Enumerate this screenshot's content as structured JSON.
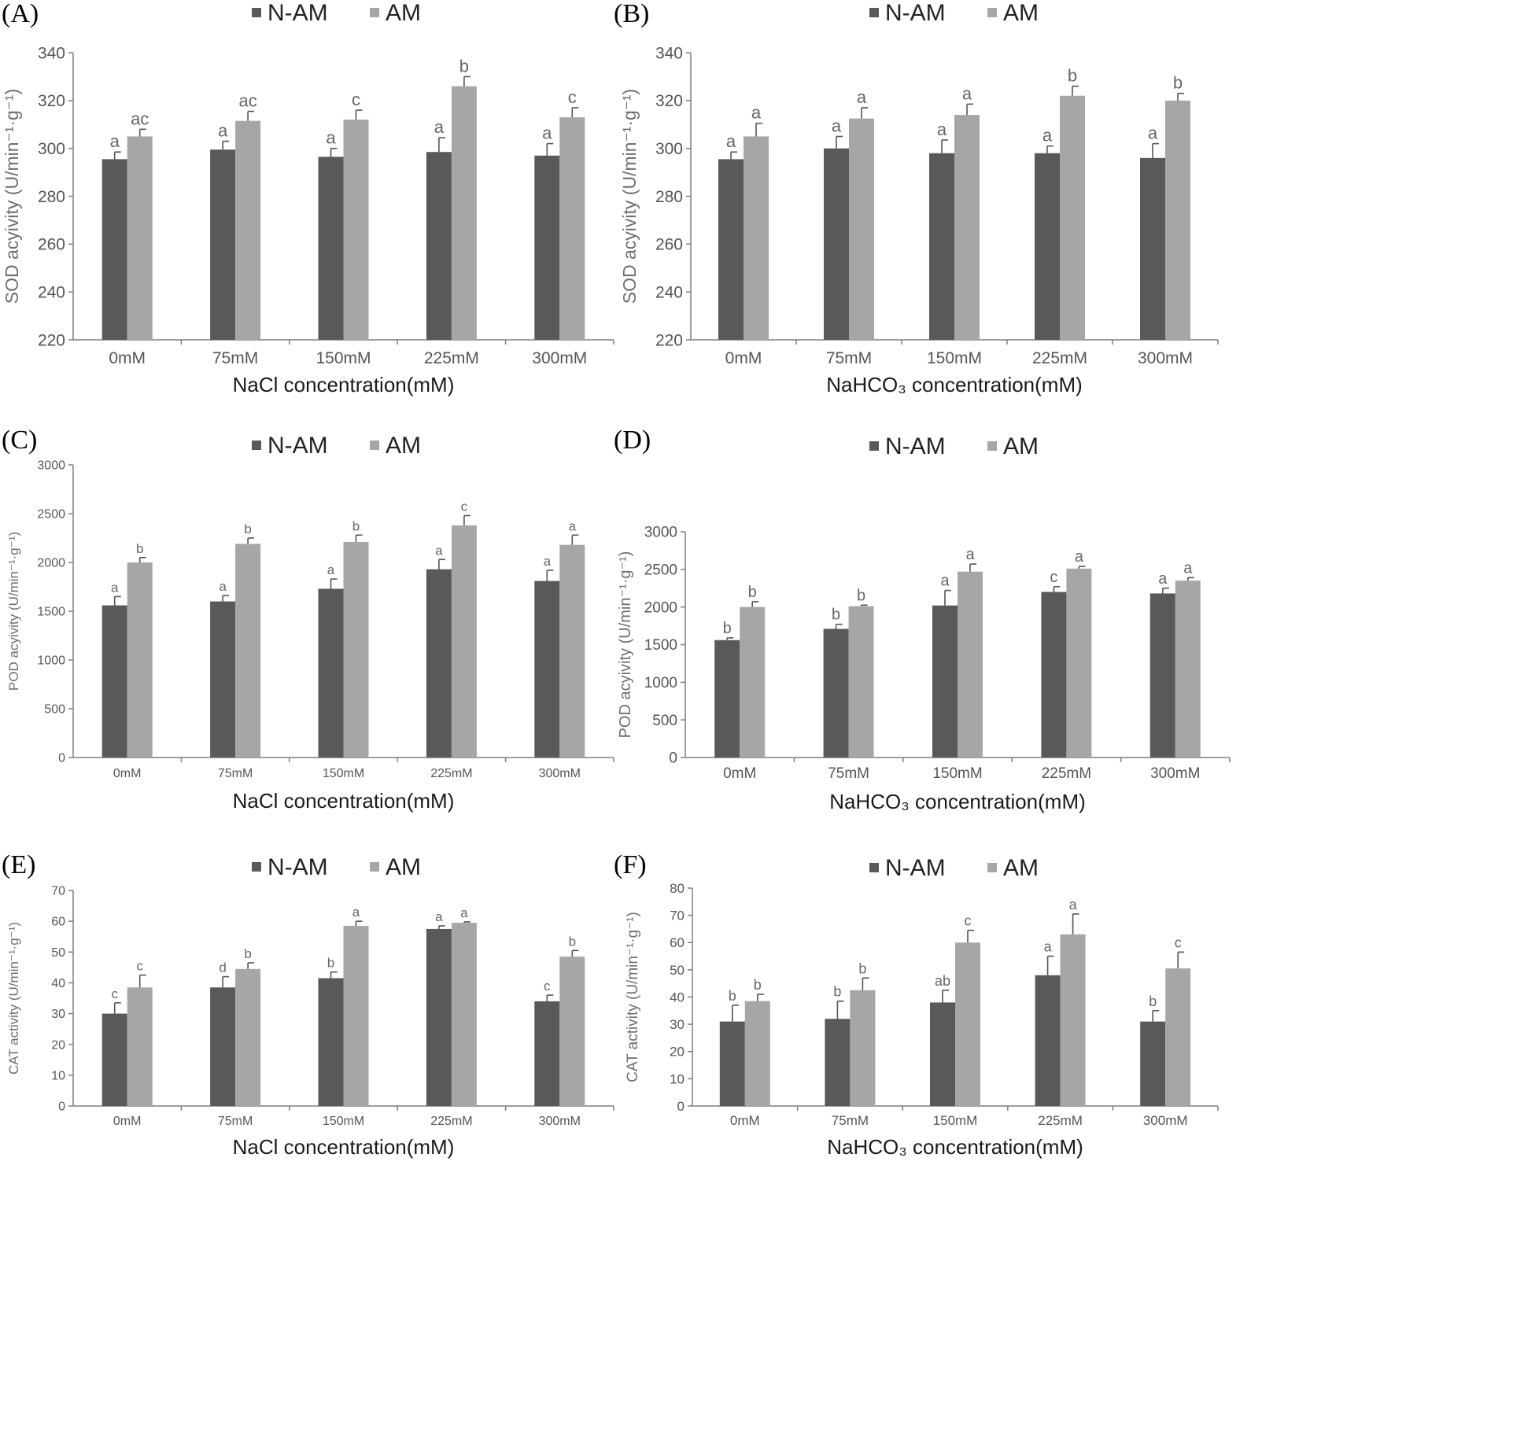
{
  "figure": {
    "colors": {
      "N-AM": "#595959",
      "AM": "#a6a6a6",
      "axis": "#7f7f7f",
      "error_bar": "#555555"
    },
    "legend_placement": "top-center",
    "grid": false
  },
  "chart_data": [
    {
      "panel_label": "(A)",
      "type": "bar",
      "categories": [
        "0mM",
        "75mM",
        "150mM",
        "225mM",
        "300mM"
      ],
      "series": [
        {
          "name": "N-AM",
          "values": [
            295.5,
            299.5,
            296.5,
            298.5,
            297
          ],
          "errors": [
            3,
            3.5,
            3.5,
            6,
            5
          ],
          "letters": [
            "a",
            "a",
            "a",
            "a",
            "a"
          ]
        },
        {
          "name": "AM",
          "values": [
            305,
            311.5,
            312,
            326,
            313
          ],
          "errors": [
            3,
            4,
            4,
            4,
            4
          ],
          "letters": [
            "ac",
            "ac",
            "c",
            "b",
            "c"
          ]
        }
      ],
      "xlabel": "NaCl concentration(mM)",
      "ylabel": "SOD acyivity (U/min⁻¹·g⁻¹)",
      "ylim": [
        220,
        340
      ],
      "yticks": [
        "220",
        "240",
        "260",
        "280",
        "300",
        "320",
        "340"
      ]
    },
    {
      "panel_label": "(B)",
      "type": "bar",
      "categories": [
        "0mM",
        "75mM",
        "150mM",
        "225mM",
        "300mM"
      ],
      "series": [
        {
          "name": "N-AM",
          "values": [
            295.5,
            300,
            298,
            298,
            296
          ],
          "errors": [
            3,
            5,
            5.5,
            3,
            6
          ],
          "letters": [
            "a",
            "a",
            "a",
            "a",
            "a"
          ]
        },
        {
          "name": "AM",
          "values": [
            305,
            312.5,
            314,
            322,
            320
          ],
          "errors": [
            5.5,
            4.5,
            4.5,
            4,
            3
          ],
          "letters": [
            "a",
            "a",
            "a",
            "b",
            "b"
          ]
        }
      ],
      "xlabel": "NaHCO₃ concentration(mM)",
      "ylabel": "SOD acyivity (U/min⁻¹·g⁻¹)",
      "ylim": [
        220,
        340
      ],
      "yticks": [
        "220",
        "240",
        "260",
        "280",
        "300",
        "320",
        "340"
      ]
    },
    {
      "panel_label": "(C)",
      "type": "bar",
      "categories": [
        "0mM",
        "75mM",
        "150mM",
        "225mM",
        "300mM"
      ],
      "series": [
        {
          "name": "N-AM",
          "values": [
            1560,
            1600,
            1730,
            1930,
            1810
          ],
          "errors": [
            90,
            60,
            100,
            100,
            110
          ],
          "letters": [
            "a",
            "a",
            "a",
            "a",
            "a"
          ]
        },
        {
          "name": "AM",
          "values": [
            2000,
            2190,
            2210,
            2380,
            2180
          ],
          "errors": [
            50,
            60,
            70,
            100,
            100
          ],
          "letters": [
            "b",
            "b",
            "b",
            "c",
            "a"
          ]
        }
      ],
      "xlabel": "NaCl concentration(mM)",
      "ylabel": "POD acyivity (U/min⁻¹·g⁻¹)",
      "ylim": [
        0,
        3000
      ],
      "yticks": [
        "0",
        "500",
        "1000",
        "1500",
        "2000",
        "2500",
        "3000"
      ]
    },
    {
      "panel_label": "(D)",
      "type": "bar",
      "categories": [
        "0mM",
        "75mM",
        "150mM",
        "225mM",
        "300mM"
      ],
      "series": [
        {
          "name": "N-AM",
          "values": [
            1560,
            1710,
            2020,
            2200,
            2180
          ],
          "errors": [
            30,
            60,
            200,
            70,
            70
          ],
          "letters": [
            "b",
            "b",
            "a",
            "c",
            "a"
          ]
        },
        {
          "name": "AM",
          "values": [
            2000,
            2010,
            2470,
            2510,
            2350
          ],
          "errors": [
            70,
            15,
            100,
            30,
            40
          ],
          "letters": [
            "b",
            "b",
            "a",
            "a",
            "a"
          ]
        }
      ],
      "xlabel": "NaHCO₃ concentration(mM)",
      "ylabel": "POD acyivity (U/min⁻¹·g⁻¹)",
      "ylim": [
        0,
        3000
      ],
      "yticks": [
        "0",
        "500",
        "1000",
        "1500",
        "2000",
        "2500",
        "3000"
      ]
    },
    {
      "panel_label": "(E)",
      "type": "bar",
      "categories": [
        "0mM",
        "75mM",
        "150mM",
        "225mM",
        "300mM"
      ],
      "series": [
        {
          "name": "N-AM",
          "values": [
            30,
            38.5,
            41.5,
            57.5,
            34
          ],
          "errors": [
            3.5,
            3.5,
            2,
            1,
            2
          ],
          "letters": [
            "c",
            "d",
            "b",
            "a",
            "c"
          ]
        },
        {
          "name": "AM",
          "values": [
            38.5,
            44.5,
            58.5,
            59.5,
            48.5
          ],
          "errors": [
            4,
            2,
            1.5,
            0.3,
            2
          ],
          "letters": [
            "c",
            "b",
            "a",
            "a",
            "b"
          ]
        }
      ],
      "xlabel": "NaCl concentration(mM)",
      "ylabel": "CAT activity (U/min⁻¹·g⁻¹)",
      "ylim": [
        0,
        70
      ],
      "yticks": [
        "0",
        "10",
        "20",
        "30",
        "40",
        "50",
        "60",
        "70"
      ]
    },
    {
      "panel_label": "(F)",
      "type": "bar",
      "categories": [
        "0mM",
        "75mM",
        "150mM",
        "225mM",
        "300mM"
      ],
      "series": [
        {
          "name": "N-AM",
          "values": [
            31,
            32,
            38,
            48,
            31
          ],
          "errors": [
            6,
            6.5,
            4.5,
            7,
            4
          ],
          "letters": [
            "b",
            "b",
            "ab",
            "a",
            "b"
          ]
        },
        {
          "name": "AM",
          "values": [
            38.5,
            42.5,
            60,
            63,
            50.5
          ],
          "errors": [
            2.5,
            4.5,
            4.5,
            7.5,
            6
          ],
          "letters": [
            "b",
            "b",
            "c",
            "a",
            "c"
          ]
        }
      ],
      "xlabel": "NaHCO₃ concentration(mM)",
      "ylabel": "CAT activity (U/min⁻¹·g⁻¹)",
      "ylim": [
        0,
        80
      ],
      "yticks": [
        "0",
        "10",
        "20",
        "30",
        "40",
        "50",
        "60",
        "70",
        "80"
      ]
    }
  ]
}
